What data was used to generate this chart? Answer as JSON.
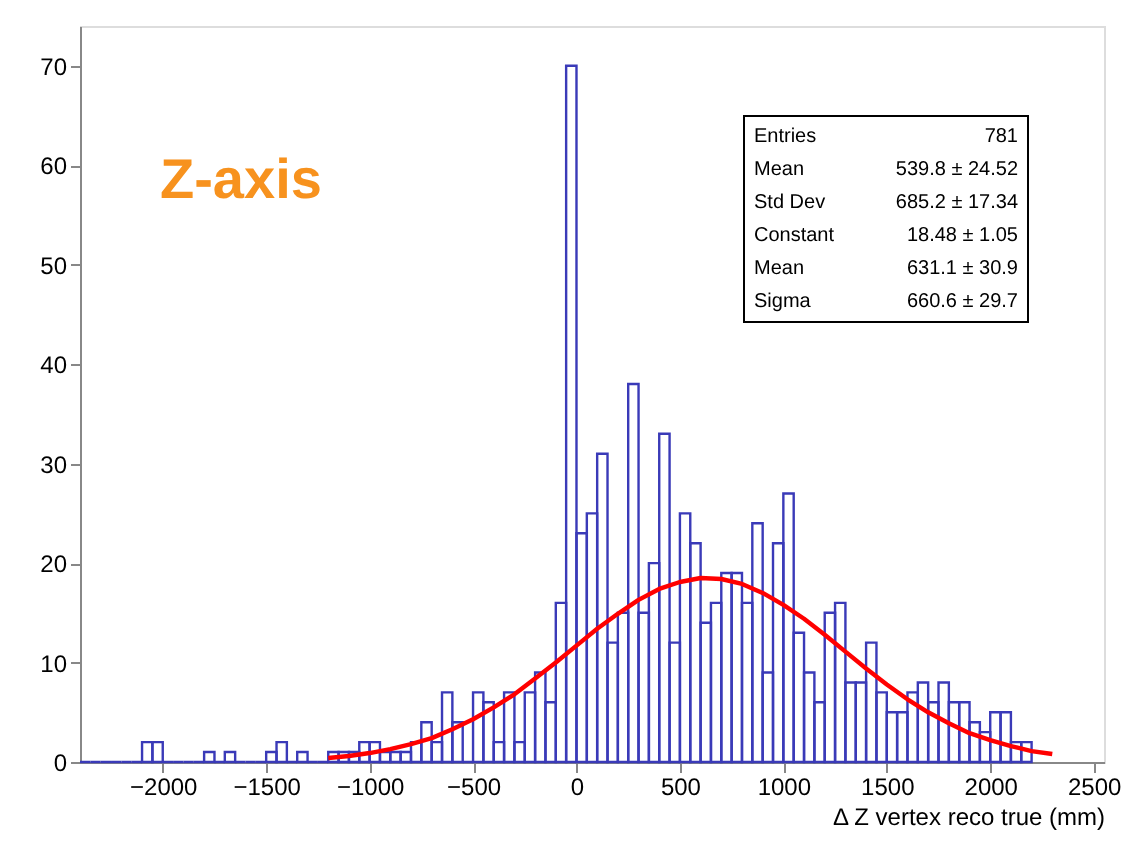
{
  "chart_data": {
    "type": "histogram",
    "xlabel": "Δ Z vertex reco true (mm)",
    "xlim": [
      -2400,
      2550
    ],
    "xticks": [
      -2000,
      -1500,
      -1000,
      -500,
      0,
      500,
      1000,
      1500,
      2000,
      2500
    ],
    "ylim": [
      0,
      74
    ],
    "yticks": [
      0,
      10,
      20,
      30,
      40,
      50,
      60,
      70
    ],
    "grid": false,
    "annotations": [
      "Z-axis",
      "Entries",
      "781",
      "Mean",
      "539.8 ±  24.52",
      "Std Dev",
      "685.2 ±  17.34",
      "Constant",
      "18.48 ± 1.05",
      "Mean",
      "631.1 ± 30.9",
      "Sigma",
      "660.6 ± 29.7"
    ],
    "series": [
      {
        "color": "#3a3ab8",
        "bins": [
          -2400,
          -2350,
          -2300,
          -2250,
          -2200,
          -2150,
          -2100,
          -2050,
          -2000,
          -1950,
          -1900,
          -1850,
          -1800,
          -1750,
          -1700,
          -1650,
          -1600,
          -1550,
          -1500,
          -1450,
          -1400,
          -1350,
          -1300,
          -1250,
          -1200,
          -1150,
          -1100,
          -1050,
          -1000,
          -950,
          -900,
          -850,
          -800,
          -750,
          -700,
          -650,
          -600,
          -550,
          -500,
          -450,
          -400,
          -350,
          -300,
          -250,
          -200,
          -150,
          -100,
          -50,
          0,
          50,
          100,
          150,
          200,
          250,
          300,
          350,
          400,
          450,
          500,
          550,
          600,
          650,
          700,
          750,
          800,
          850,
          900,
          950,
          1000,
          1050,
          1100,
          1150,
          1200,
          1250,
          1300,
          1350,
          1400,
          1450,
          1500,
          1550,
          1600,
          1650,
          1700,
          1750,
          1800,
          1850,
          1900,
          1950,
          2000,
          2050,
          2100,
          2150,
          2200
        ],
        "values": [
          0,
          0,
          0,
          0,
          0,
          0,
          2,
          2,
          0,
          0,
          0,
          0,
          1,
          0,
          1,
          0,
          0,
          0,
          1,
          2,
          0,
          1,
          0,
          0,
          1,
          1,
          1,
          2,
          2,
          1,
          1,
          1,
          2,
          4,
          2,
          7,
          4,
          0,
          7,
          6,
          2,
          7,
          2,
          7,
          9,
          6,
          16,
          70,
          23,
          25,
          31,
          12,
          15,
          38,
          15,
          20,
          33,
          12,
          25,
          22,
          14,
          16,
          19,
          19,
          16,
          24,
          9,
          22,
          27,
          13,
          9,
          6,
          15,
          16,
          8,
          8,
          12,
          7,
          5,
          5,
          7,
          8,
          6,
          8,
          6,
          6,
          4,
          3,
          5,
          5,
          2,
          2
        ]
      },
      {
        "type": "line",
        "color": "#ff0000",
        "x": [
          -1200,
          -1100,
          -1000,
          -900,
          -800,
          -700,
          -600,
          -500,
          -400,
          -300,
          -200,
          -100,
          0,
          100,
          200,
          300,
          400,
          500,
          600,
          700,
          800,
          900,
          1000,
          1100,
          1200,
          1300,
          1400,
          1500,
          1600,
          1700,
          1800,
          1900,
          2000,
          2100,
          2200,
          2300
        ],
        "values": [
          0.4,
          0.6,
          0.9,
          1.3,
          1.8,
          2.4,
          3.3,
          4.3,
          5.5,
          6.8,
          8.4,
          10.0,
          11.7,
          13.4,
          14.9,
          16.3,
          17.4,
          18.1,
          18.5,
          18.4,
          17.9,
          17.0,
          15.8,
          14.4,
          12.8,
          11.1,
          9.4,
          7.8,
          6.3,
          5.0,
          3.9,
          2.9,
          2.2,
          1.6,
          1.1,
          0.8
        ]
      }
    ]
  }
}
